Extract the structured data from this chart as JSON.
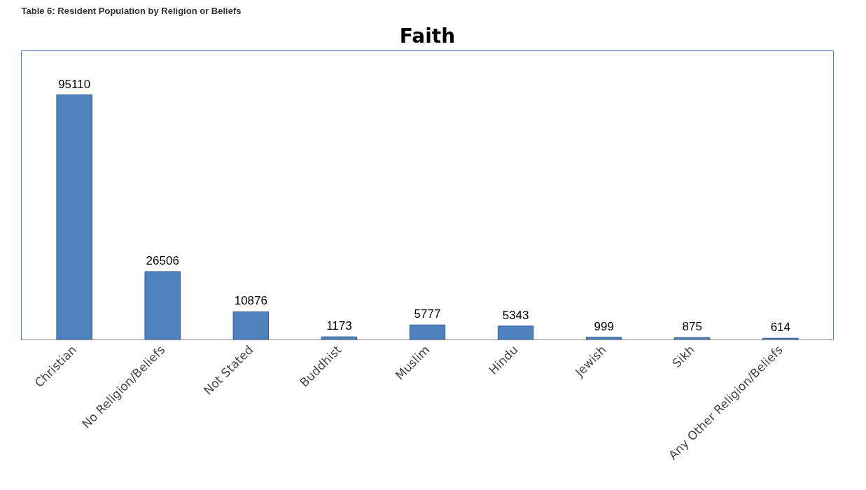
{
  "chart_data": {
    "type": "bar",
    "title": "Faith",
    "annotations": [
      "Table 6: Resident Population by Religion or Beliefs"
    ],
    "categories": [
      "Christian",
      "No Religion/Beliefs",
      "Not Stated",
      "Buddhist",
      "Muslim",
      "Hindu",
      "Jewish",
      "Sikh",
      "Any Other Religion/Beliefs"
    ],
    "values": [
      95110,
      26506,
      10876,
      1173,
      5777,
      5343,
      999,
      875,
      614
    ],
    "color": "#4f81bd",
    "data_labels": true
  }
}
